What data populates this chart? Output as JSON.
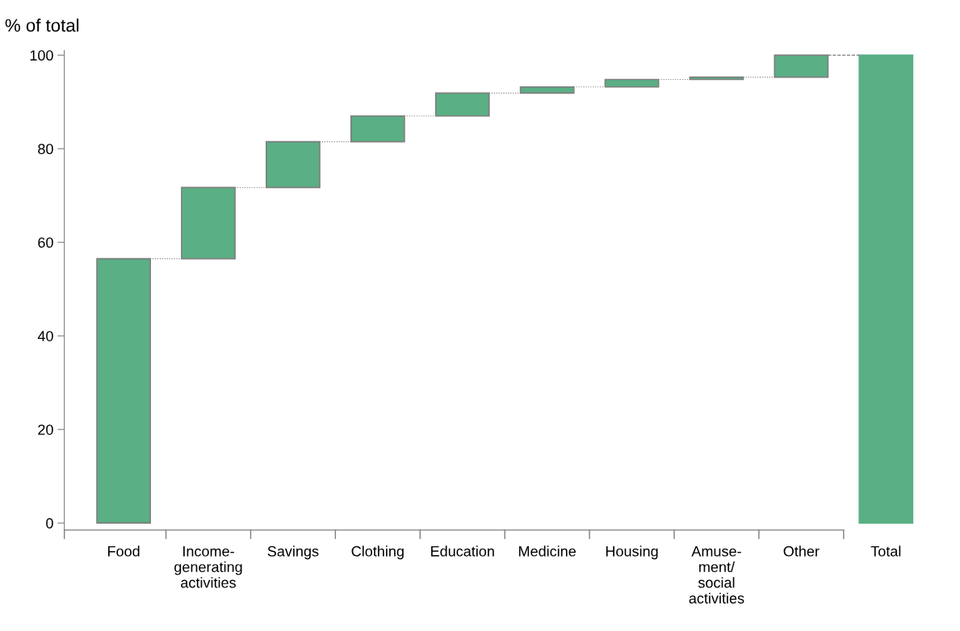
{
  "chart_data": {
    "type": "bar",
    "ylabel": "% of total",
    "categories": [
      "Food",
      "Income-\ngenerating\nactivities",
      "Savings",
      "Clothing",
      "Education",
      "Medicine",
      "Housing",
      "Amuse-\nment/\nsocial\nactivities",
      "Other",
      "Total"
    ],
    "values": [
      56.5,
      15.2,
      9.8,
      5.5,
      4.9,
      1.3,
      1.6,
      0.5,
      4.7,
      100
    ],
    "base": [
      0,
      56.5,
      71.7,
      81.5,
      87.0,
      91.9,
      93.2,
      94.8,
      95.3,
      0
    ],
    "color": "#5aaf84",
    "ylim": [
      -1.5,
      101
    ],
    "yticks": [
      0,
      20,
      40,
      60,
      80,
      100
    ],
    "grid": false,
    "legend": false
  }
}
